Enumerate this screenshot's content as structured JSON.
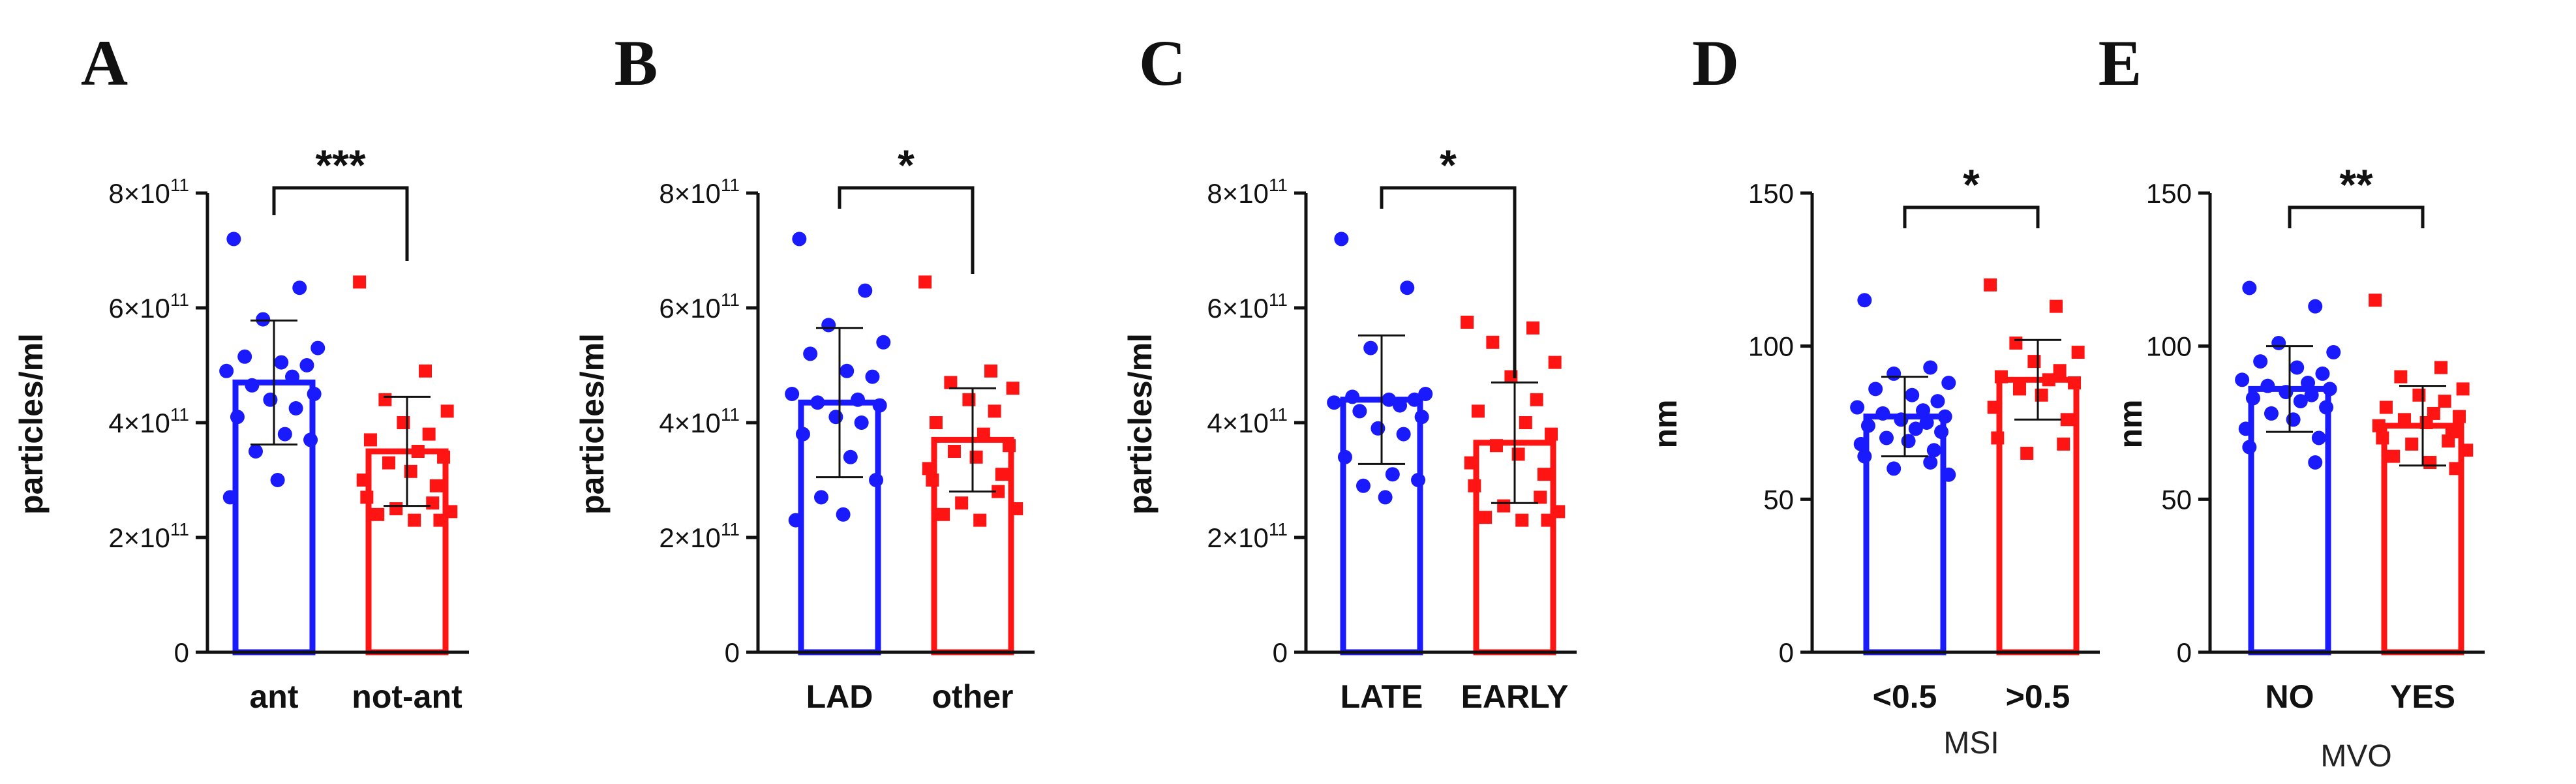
{
  "colors": {
    "group1": "#1a1aff",
    "group2": "#ff1414",
    "axis": "#111111"
  },
  "chart_data": [
    {
      "panel": "A",
      "type": "bar",
      "ylabel": "particles/ml",
      "xlabel": "",
      "ylim": [
        0,
        800000000000
      ],
      "yticks": [
        {
          "value": 0,
          "label": "0",
          "exp": ""
        },
        {
          "value": 200000000000,
          "label": "2×10",
          "exp": "11"
        },
        {
          "value": 400000000000,
          "label": "4×10",
          "exp": "11"
        },
        {
          "value": 600000000000,
          "label": "6×10",
          "exp": "11"
        },
        {
          "value": 800000000000,
          "label": "8×10",
          "exp": "11"
        }
      ],
      "significance": "***",
      "categories": [
        "ant",
        "not-ant"
      ],
      "series": [
        {
          "name": "ant",
          "color": "#1a1aff",
          "marker": "circle",
          "mean": 470000000000,
          "sd": 108000000000,
          "points": [
            720000000000,
            635000000000,
            580000000000,
            530000000000,
            515000000000,
            505000000000,
            500000000000,
            490000000000,
            480000000000,
            465000000000,
            450000000000,
            440000000000,
            425000000000,
            410000000000,
            380000000000,
            370000000000,
            350000000000,
            300000000000,
            270000000000
          ]
        },
        {
          "name": "not-ant",
          "color": "#ff1414",
          "marker": "square",
          "mean": 350000000000,
          "sd": 95000000000,
          "points": [
            645000000000,
            490000000000,
            440000000000,
            420000000000,
            400000000000,
            380000000000,
            370000000000,
            350000000000,
            340000000000,
            330000000000,
            315000000000,
            300000000000,
            290000000000,
            270000000000,
            260000000000,
            250000000000,
            245000000000,
            240000000000,
            230000000000,
            230000000000
          ]
        }
      ]
    },
    {
      "panel": "B",
      "type": "bar",
      "ylabel": "particles/ml",
      "xlabel": "",
      "ylim": [
        0,
        800000000000
      ],
      "yticks": [
        {
          "value": 0,
          "label": "0",
          "exp": ""
        },
        {
          "value": 200000000000,
          "label": "2×10",
          "exp": "11"
        },
        {
          "value": 400000000000,
          "label": "4×10",
          "exp": "11"
        },
        {
          "value": 600000000000,
          "label": "6×10",
          "exp": "11"
        },
        {
          "value": 800000000000,
          "label": "8×10",
          "exp": "11"
        }
      ],
      "significance": "*",
      "categories": [
        "LAD",
        "other"
      ],
      "series": [
        {
          "name": "LAD",
          "color": "#1a1aff",
          "marker": "circle",
          "mean": 435000000000,
          "sd": 130000000000,
          "points": [
            720000000000,
            630000000000,
            570000000000,
            540000000000,
            520000000000,
            490000000000,
            480000000000,
            450000000000,
            440000000000,
            435000000000,
            430000000000,
            410000000000,
            400000000000,
            380000000000,
            340000000000,
            300000000000,
            270000000000,
            240000000000,
            230000000000
          ]
        },
        {
          "name": "other",
          "color": "#ff1414",
          "marker": "square",
          "mean": 370000000000,
          "sd": 90000000000,
          "points": [
            645000000000,
            490000000000,
            470000000000,
            460000000000,
            440000000000,
            420000000000,
            400000000000,
            380000000000,
            360000000000,
            350000000000,
            340000000000,
            320000000000,
            310000000000,
            300000000000,
            280000000000,
            260000000000,
            250000000000,
            240000000000,
            230000000000
          ]
        }
      ]
    },
    {
      "panel": "C",
      "type": "bar",
      "ylabel": "particles/ml",
      "xlabel": "",
      "ylim": [
        0,
        800000000000
      ],
      "yticks": [
        {
          "value": 0,
          "label": "0",
          "exp": ""
        },
        {
          "value": 200000000000,
          "label": "2×10",
          "exp": "11"
        },
        {
          "value": 400000000000,
          "label": "4×10",
          "exp": "11"
        },
        {
          "value": 600000000000,
          "label": "6×10",
          "exp": "11"
        },
        {
          "value": 800000000000,
          "label": "8×10",
          "exp": "11"
        }
      ],
      "significance": "*",
      "categories": [
        "LATE",
        "EARLY"
      ],
      "series": [
        {
          "name": "LATE",
          "color": "#1a1aff",
          "marker": "circle",
          "mean": 440000000000,
          "sd": 112000000000,
          "points": [
            720000000000,
            635000000000,
            530000000000,
            450000000000,
            445000000000,
            440000000000,
            440000000000,
            435000000000,
            430000000000,
            420000000000,
            410000000000,
            390000000000,
            380000000000,
            340000000000,
            310000000000,
            300000000000,
            290000000000,
            270000000000
          ]
        },
        {
          "name": "EARLY",
          "color": "#ff1414",
          "marker": "square",
          "mean": 365000000000,
          "sd": 105000000000,
          "points": [
            575000000000,
            565000000000,
            540000000000,
            505000000000,
            480000000000,
            440000000000,
            420000000000,
            400000000000,
            380000000000,
            360000000000,
            345000000000,
            330000000000,
            310000000000,
            290000000000,
            270000000000,
            255000000000,
            245000000000,
            235000000000,
            230000000000,
            230000000000
          ]
        }
      ]
    },
    {
      "panel": "D",
      "type": "bar",
      "ylabel": "nm",
      "xlabel": "MSI",
      "ylim": [
        0,
        150
      ],
      "yticks": [
        {
          "value": 0,
          "label": "0",
          "exp": ""
        },
        {
          "value": 50,
          "label": "50",
          "exp": ""
        },
        {
          "value": 100,
          "label": "100",
          "exp": ""
        },
        {
          "value": 150,
          "label": "150",
          "exp": ""
        }
      ],
      "significance": "*",
      "categories": [
        "<0.5",
        ">0.5"
      ],
      "series": [
        {
          "name": "<0.5",
          "color": "#1a1aff",
          "marker": "circle",
          "mean": 77,
          "sd": 13,
          "points": [
            115,
            93,
            91,
            88,
            86,
            84,
            82,
            80,
            79,
            78,
            77,
            76,
            75,
            74,
            73,
            72,
            70,
            69,
            68,
            66,
            64,
            62,
            60,
            58
          ]
        },
        {
          "name": ">0.5",
          "color": "#ff1414",
          "marker": "square",
          "mean": 89,
          "sd": 13,
          "points": [
            120,
            113,
            101,
            98,
            95,
            92,
            90,
            89,
            88,
            86,
            84,
            80,
            76,
            70,
            68,
            65
          ]
        }
      ]
    },
    {
      "panel": "E",
      "type": "bar",
      "ylabel": "nm",
      "xlabel": "MVO",
      "ylim": [
        0,
        150
      ],
      "yticks": [
        {
          "value": 0,
          "label": "0",
          "exp": ""
        },
        {
          "value": 50,
          "label": "50",
          "exp": ""
        },
        {
          "value": 100,
          "label": "100",
          "exp": ""
        },
        {
          "value": 150,
          "label": "150",
          "exp": ""
        }
      ],
      "significance": "**",
      "categories": [
        "NO",
        "YES"
      ],
      "series": [
        {
          "name": "NO",
          "color": "#1a1aff",
          "marker": "circle",
          "mean": 86,
          "sd": 14,
          "points": [
            119,
            113,
            101,
            98,
            95,
            93,
            91,
            89,
            88,
            87,
            86,
            85,
            84,
            83,
            82,
            80,
            78,
            76,
            73,
            70,
            67,
            62
          ]
        },
        {
          "name": "YES",
          "color": "#ff1414",
          "marker": "square",
          "mean": 74,
          "sd": 13,
          "points": [
            115,
            93,
            90,
            86,
            84,
            82,
            80,
            78,
            77,
            76,
            75,
            74,
            72,
            70,
            69,
            68,
            66,
            64,
            62,
            60
          ]
        }
      ]
    }
  ]
}
